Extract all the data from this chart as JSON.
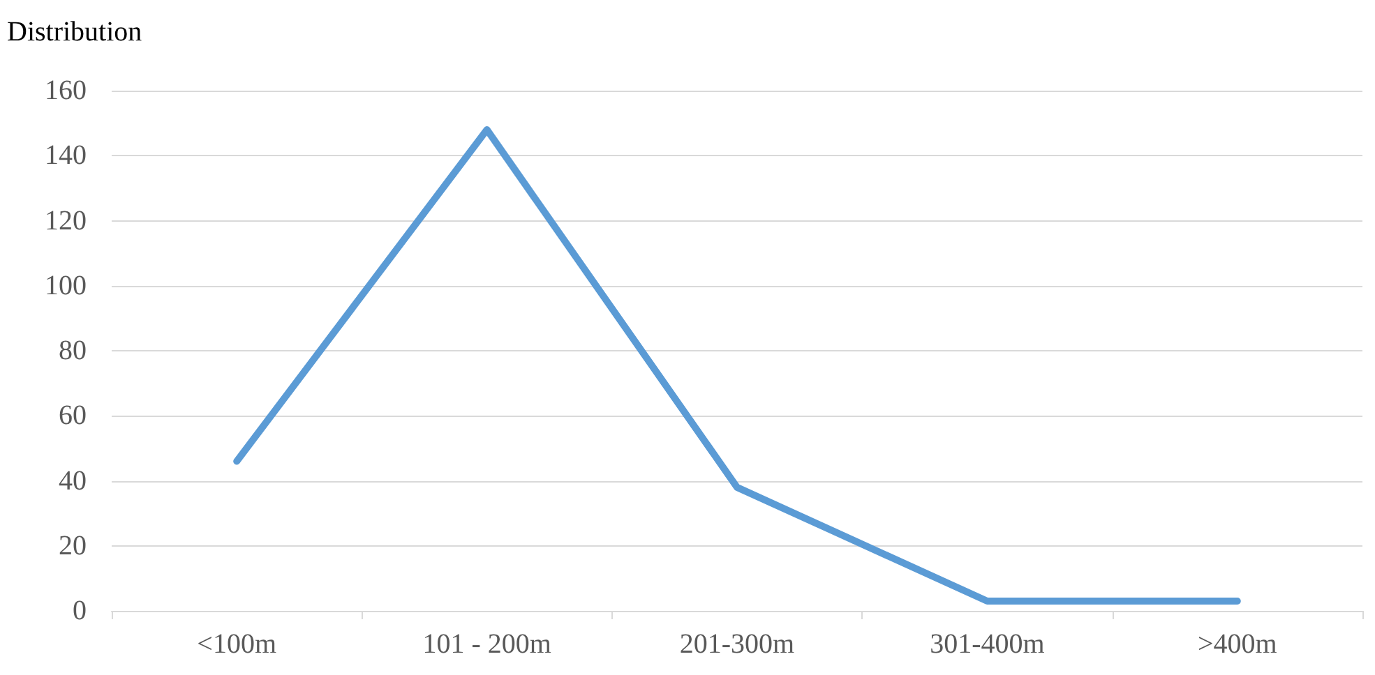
{
  "chart_data": {
    "type": "line",
    "title": "Distribution",
    "categories": [
      "<100m",
      "101 - 200m",
      "201-300m",
      "301-400m",
      ">400m"
    ],
    "series": [
      {
        "color": "#5b9bd5",
        "values": [
          46,
          148,
          38,
          3,
          3
        ]
      }
    ],
    "ylim": [
      0,
      160
    ],
    "yticks": [
      0,
      20,
      40,
      60,
      80,
      100,
      120,
      140,
      160
    ],
    "grid": "y",
    "marker": "none",
    "line_style": "solid"
  }
}
